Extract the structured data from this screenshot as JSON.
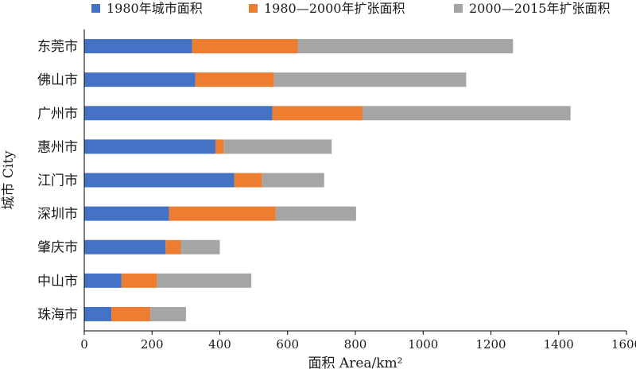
{
  "chart_data": {
    "type": "bar",
    "orientation": "horizontal",
    "stacked": true,
    "categories": [
      "东莞市",
      "佛山市",
      "广州市",
      "惠州市",
      "江门市",
      "深圳市",
      "肇庆市",
      "中山市",
      "珠海市"
    ],
    "series": [
      {
        "name": "1980年城市面积",
        "color": "#4472c4",
        "values": [
          318,
          328,
          555,
          387,
          443,
          250,
          240,
          110,
          80
        ]
      },
      {
        "name": "1980—2000年扩张面积",
        "color": "#ed7d31",
        "values": [
          312,
          232,
          267,
          25,
          82,
          315,
          45,
          105,
          115
        ]
      },
      {
        "name": "2000—2015年扩张面积",
        "color": "#a5a5a5",
        "values": [
          635,
          567,
          613,
          318,
          183,
          237,
          115,
          278,
          105
        ]
      }
    ],
    "xlim": [
      0,
      1600
    ],
    "xticks": [
      0,
      200,
      400,
      600,
      800,
      1000,
      1200,
      1400,
      1600
    ],
    "xlabel": "面积 Area/km²",
    "ylabel": "城市 City",
    "legend_position": "top",
    "grid": false
  }
}
